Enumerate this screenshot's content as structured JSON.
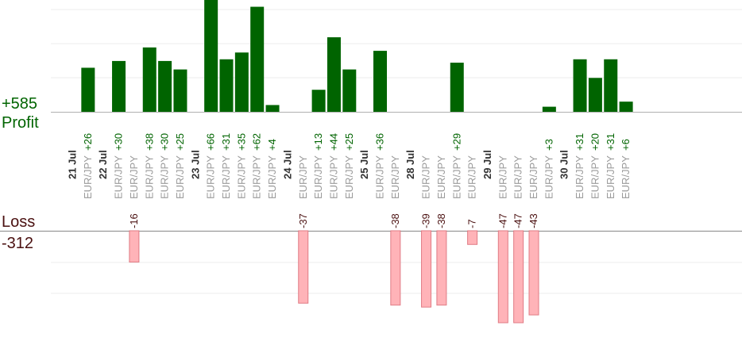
{
  "chart_data": {
    "type": "bar",
    "profit": {
      "label": "Profit",
      "total": "+585",
      "color": "#006400",
      "ylim": [
        0,
        66
      ]
    },
    "loss": {
      "label": "Loss",
      "total": "-312",
      "color": "#ffb3b8",
      "border_color": "#e07b84",
      "ylim": [
        -47,
        0
      ]
    },
    "label_colors": {
      "profit_value": "#006400",
      "loss_value": "#4a1010",
      "date": "#333333",
      "symbol": "#9a9a9a"
    },
    "columns": [
      {
        "kind": "date",
        "label": "21 Jul"
      },
      {
        "kind": "trade",
        "symbol": "EUR/JPY",
        "value": 26
      },
      {
        "kind": "date",
        "label": "22 Jul"
      },
      {
        "kind": "trade",
        "symbol": "EUR/JPY",
        "value": 30
      },
      {
        "kind": "trade",
        "symbol": "EUR/JPY",
        "value": -16
      },
      {
        "kind": "trade",
        "symbol": "EUR/JPY",
        "value": 38
      },
      {
        "kind": "trade",
        "symbol": "EUR/JPY",
        "value": 30
      },
      {
        "kind": "trade",
        "symbol": "EUR/JPY",
        "value": 25
      },
      {
        "kind": "date",
        "label": "23 Jul"
      },
      {
        "kind": "trade",
        "symbol": "EUR/JPY",
        "value": 66
      },
      {
        "kind": "trade",
        "symbol": "EUR/JPY",
        "value": 31
      },
      {
        "kind": "trade",
        "symbol": "EUR/JPY",
        "value": 35
      },
      {
        "kind": "trade",
        "symbol": "EUR/JPY",
        "value": 62
      },
      {
        "kind": "trade",
        "symbol": "EUR/JPY",
        "value": 4
      },
      {
        "kind": "date",
        "label": "24 Jul"
      },
      {
        "kind": "trade",
        "symbol": "EUR/JPY",
        "value": -37
      },
      {
        "kind": "trade",
        "symbol": "EUR/JPY",
        "value": 13
      },
      {
        "kind": "trade",
        "symbol": "EUR/JPY",
        "value": 44
      },
      {
        "kind": "trade",
        "symbol": "EUR/JPY",
        "value": 25
      },
      {
        "kind": "date",
        "label": "25 Jul"
      },
      {
        "kind": "trade",
        "symbol": "EUR/JPY",
        "value": 36
      },
      {
        "kind": "trade",
        "symbol": "EUR/JPY",
        "value": -38
      },
      {
        "kind": "date",
        "label": "28 Jul"
      },
      {
        "kind": "trade",
        "symbol": "EUR/JPY",
        "value": -39
      },
      {
        "kind": "trade",
        "symbol": "EUR/JPY",
        "value": -38
      },
      {
        "kind": "trade",
        "symbol": "EUR/JPY",
        "value": 29
      },
      {
        "kind": "trade",
        "symbol": "EUR/JPY",
        "value": -7
      },
      {
        "kind": "date",
        "label": "29 Jul"
      },
      {
        "kind": "trade",
        "symbol": "EUR/JPY",
        "value": -47
      },
      {
        "kind": "trade",
        "symbol": "EUR/JPY",
        "value": -47
      },
      {
        "kind": "trade",
        "symbol": "EUR/JPY",
        "value": -43
      },
      {
        "kind": "trade",
        "symbol": "EUR/JPY",
        "value": 3
      },
      {
        "kind": "date",
        "label": "30 Jul"
      },
      {
        "kind": "trade",
        "symbol": "EUR/JPY",
        "value": 31
      },
      {
        "kind": "trade",
        "symbol": "EUR/JPY",
        "value": 20
      },
      {
        "kind": "trade",
        "symbol": "EUR/JPY",
        "value": 31
      },
      {
        "kind": "trade",
        "symbol": "EUR/JPY",
        "value": 6
      }
    ]
  }
}
